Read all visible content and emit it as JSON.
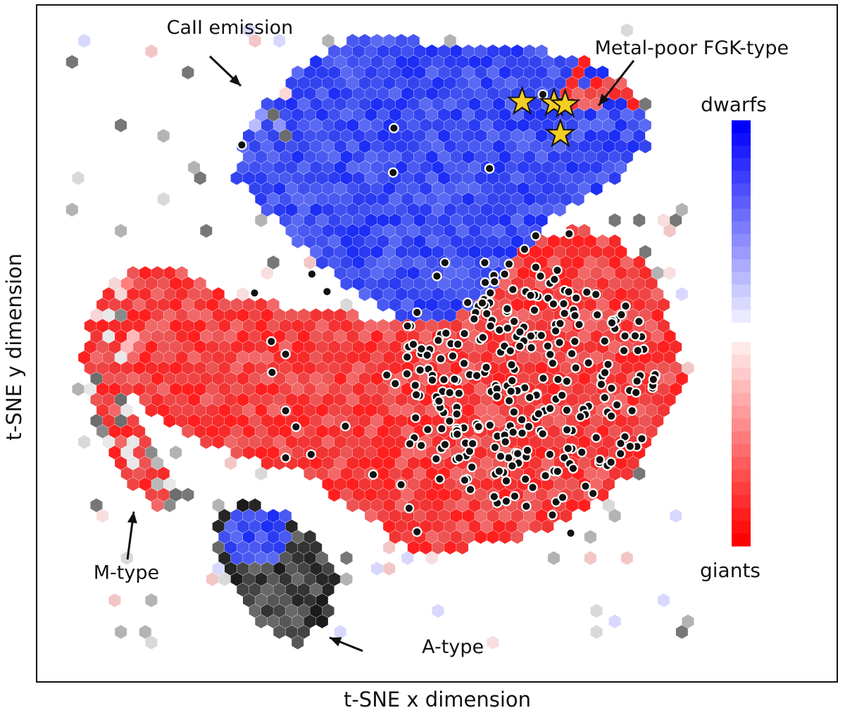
{
  "chart_data": {
    "type": "heatmap",
    "subtype": "hexbin",
    "title": "",
    "xlabel": "t-SNE x dimension",
    "ylabel": "t-SNE y dimension",
    "grid": false,
    "xlim": [
      0,
      100
    ],
    "ylim": [
      0,
      100
    ],
    "colorbar": {
      "top_label": "dwarfs",
      "bottom_label": "giants",
      "colors": [
        "#0000ff",
        "#ff0000"
      ]
    },
    "annotations": [
      {
        "text": "CaII emission",
        "x": 24,
        "y": 96
      },
      {
        "text": "Metal-poor FGK-type",
        "x": 82,
        "y": 93
      },
      {
        "text": "M-type",
        "x": 11,
        "y": 15
      },
      {
        "text": "A-type",
        "x": 52,
        "y": 4
      }
    ],
    "regions": {
      "dwarf_blob": {
        "value": "dwarfs",
        "color": "#3040f0",
        "outline": [
          [
            24,
            75
          ],
          [
            27,
            84
          ],
          [
            32,
            90
          ],
          [
            38,
            95
          ],
          [
            48,
            95
          ],
          [
            58,
            94
          ],
          [
            68,
            93
          ],
          [
            75,
            88
          ],
          [
            77,
            80
          ],
          [
            72,
            74
          ],
          [
            66,
            70
          ],
          [
            60,
            63
          ],
          [
            55,
            55
          ],
          [
            47,
            53
          ],
          [
            40,
            57
          ],
          [
            35,
            62
          ],
          [
            30,
            68
          ]
        ]
      },
      "giant_blob": {
        "value": "giants",
        "color": "#f22c2c",
        "outline": [
          [
            5,
            53
          ],
          [
            10,
            60
          ],
          [
            16,
            62
          ],
          [
            22,
            58
          ],
          [
            28,
            56
          ],
          [
            35,
            55
          ],
          [
            42,
            54
          ],
          [
            50,
            53
          ],
          [
            58,
            61
          ],
          [
            62,
            66
          ],
          [
            68,
            67
          ],
          [
            73,
            66
          ],
          [
            77,
            60
          ],
          [
            80,
            52
          ],
          [
            81,
            44
          ],
          [
            78,
            36
          ],
          [
            72,
            28
          ],
          [
            65,
            23
          ],
          [
            58,
            20
          ],
          [
            47,
            19
          ],
          [
            40,
            25
          ],
          [
            33,
            31
          ],
          [
            25,
            33
          ],
          [
            16,
            38
          ],
          [
            10,
            44
          ]
        ]
      },
      "a_type_blob": {
        "value": "A-type",
        "color": "#333333",
        "outline": [
          [
            22,
            25
          ],
          [
            27,
            27
          ],
          [
            33,
            23
          ],
          [
            36,
            19
          ],
          [
            38,
            15
          ],
          [
            36,
            9
          ],
          [
            33,
            5
          ],
          [
            27,
            8
          ],
          [
            24,
            15
          ],
          [
            22,
            20
          ]
        ]
      },
      "a_type_blue_patch": {
        "value": "dwarfs",
        "color": "#2f3ff0",
        "outline": [
          [
            23,
            22
          ],
          [
            26,
            26
          ],
          [
            31,
            25
          ],
          [
            32,
            21
          ],
          [
            29,
            17
          ],
          [
            25,
            17
          ]
        ]
      },
      "m_type_arc": {
        "value": "M-type",
        "color": "#e43a3a",
        "outline": [
          [
            8,
            56
          ],
          [
            5,
            48
          ],
          [
            7,
            39
          ],
          [
            11,
            30
          ],
          [
            16,
            24
          ],
          [
            19,
            27
          ],
          [
            14,
            34
          ],
          [
            11,
            42
          ],
          [
            11,
            52
          ],
          [
            14,
            58
          ]
        ]
      }
    },
    "points": {
      "name": "",
      "marker": "circle",
      "color": "#111111",
      "edgecolor": "#ffffff",
      "values": [
        [
          25.5,
          79.5
        ],
        [
          44.6,
          82.0
        ],
        [
          56.6,
          76.0
        ],
        [
          63.3,
          87.0
        ],
        [
          44.5,
          75.4
        ],
        [
          51.0,
          62.0
        ],
        [
          34.3,
          60.3
        ],
        [
          36.2,
          57.7
        ],
        [
          50.0,
          60.0
        ],
        [
          27.1,
          57.5
        ],
        [
          29.2,
          50.3
        ],
        [
          31.0,
          48.4
        ],
        [
          29.3,
          45.7
        ],
        [
          31.0,
          40.0
        ],
        [
          32.3,
          37.6
        ],
        [
          31.0,
          33.0
        ],
        [
          34.2,
          33.5
        ],
        [
          42.0,
          30.5
        ],
        [
          45.5,
          29.0
        ],
        [
          46.5,
          25.5
        ],
        [
          47.5,
          22.0
        ],
        [
          38.5,
          37.7
        ],
        [
          43.7,
          45.3
        ],
        [
          47.5,
          54.6
        ],
        [
          48.0,
          48.5
        ],
        [
          52.5,
          40.5
        ],
        [
          55.0,
          38.0
        ],
        [
          58.0,
          48.7
        ],
        [
          60.0,
          51.0
        ],
        [
          59.0,
          33.0
        ],
        [
          63.5,
          40.0
        ],
        [
          63.0,
          37.0
        ],
        [
          66.0,
          33.0
        ],
        [
          64.5,
          24.5
        ],
        [
          66.8,
          21.8
        ],
        [
          69.6,
          27.7
        ],
        [
          70.4,
          32.3
        ],
        [
          70.7,
          45.0
        ],
        [
          72.5,
          53.5
        ],
        [
          74.2,
          43.0
        ],
        [
          75.7,
          51.0
        ],
        [
          74.5,
          40.0
        ],
        [
          66.6,
          66.3
        ],
        [
          62.4,
          66.0
        ],
        [
          61.0,
          64.0
        ],
        [
          63.0,
          60.0
        ],
        [
          56.0,
          62.0
        ],
        [
          58.5,
          60.3
        ]
      ],
      "cluster": {
        "count": 260,
        "xrange": [
          36,
          76
        ],
        "yrange": [
          28,
          69
        ],
        "center": [
          61,
          44
        ]
      }
    },
    "stars": {
      "name": "",
      "marker": "star",
      "color": "#f4cf22",
      "values": [
        [
          60.7,
          85.9
        ],
        [
          64.7,
          85.7
        ],
        [
          66.1,
          85.5
        ],
        [
          65.5,
          81.1
        ]
      ]
    }
  }
}
